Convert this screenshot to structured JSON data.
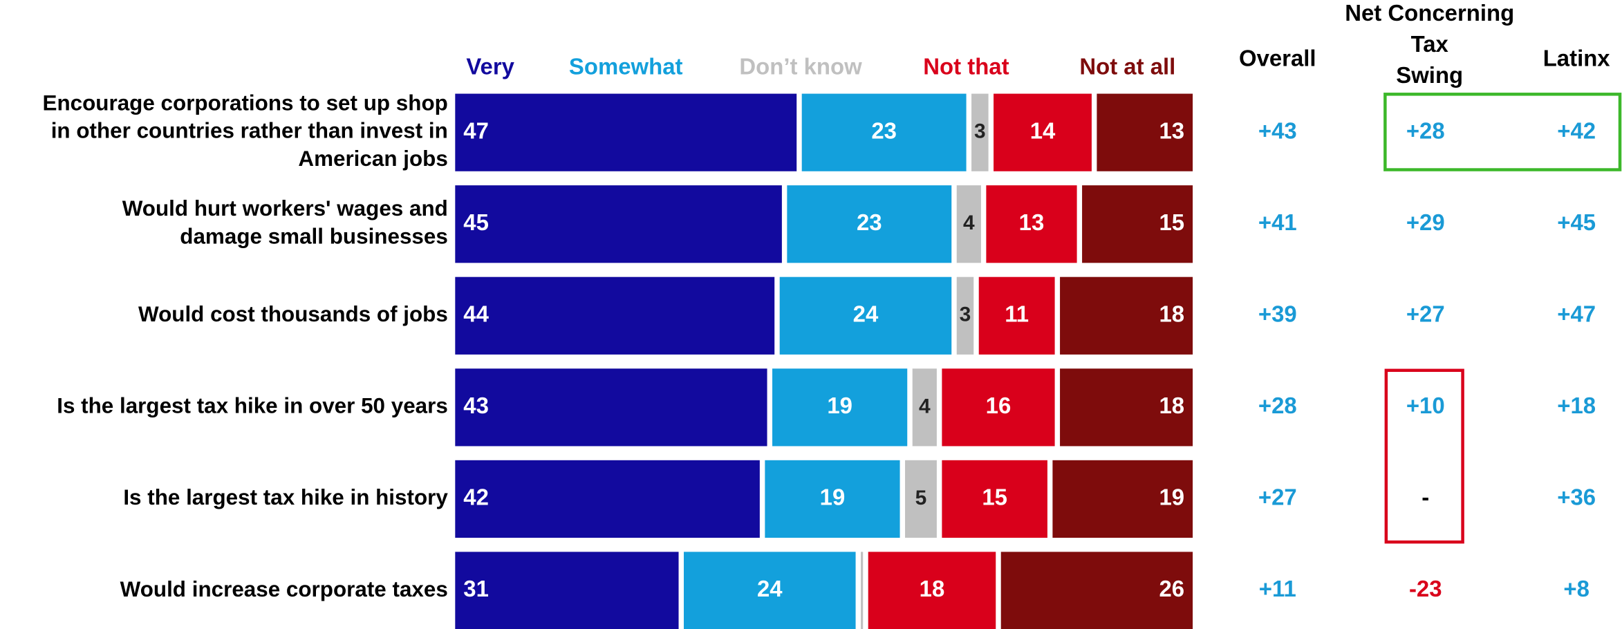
{
  "chart_data": {
    "type": "stacked-bar",
    "categories": [
      "Encourage corporations to set up shop\nin other countries rather than invest in\nAmerican jobs",
      "Would hurt workers' wages and\ndamage small businesses",
      "Would cost thousands of jobs",
      "Is the largest tax hike in over 50 years",
      "Is the largest tax hike in history",
      "Would increase corporate taxes"
    ],
    "series": [
      {
        "name": "Very",
        "color": "#120a9e",
        "values": [
          47,
          45,
          44,
          43,
          42,
          31
        ]
      },
      {
        "name": "Somewhat",
        "color": "#13a0dc",
        "values": [
          23,
          23,
          24,
          19,
          19,
          24
        ]
      },
      {
        "name": "Don’t know",
        "color": "#c0c0c0",
        "values": [
          3,
          4,
          3,
          4,
          5,
          1
        ],
        "value_labels": [
          "3",
          "4",
          "3",
          "4",
          "5",
          null
        ]
      },
      {
        "name": "Not that",
        "color": "#d9001b",
        "values": [
          14,
          13,
          11,
          16,
          15,
          18
        ]
      },
      {
        "name": "Not at all",
        "color": "#7e0c0c",
        "values": [
          13,
          15,
          18,
          18,
          19,
          26
        ]
      }
    ],
    "xlim": [
      0,
      100
    ],
    "table": {
      "columns": [
        {
          "header": "Overall",
          "values": [
            "+43",
            "+41",
            "+39",
            "+28",
            "+27",
            "+11"
          ]
        },
        {
          "header": "Net Concerning\nTax\nSwing",
          "values": [
            "+28",
            "+29",
            "+27",
            "+10",
            "-",
            "-23"
          ]
        },
        {
          "header": "Latinx",
          "values": [
            "+42",
            "+45",
            "+47",
            "+18",
            "+36",
            "+8"
          ]
        }
      ]
    }
  }
}
